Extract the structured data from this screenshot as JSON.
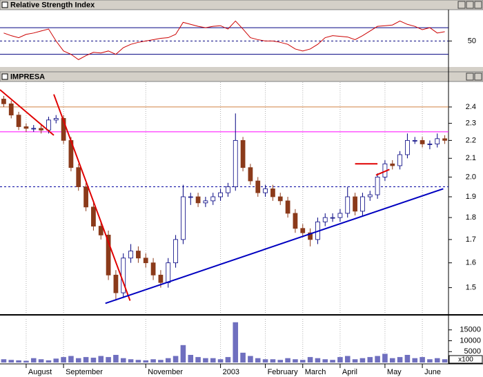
{
  "chart_data": [
    {
      "type": "line",
      "title": "Relative Strength Index",
      "series": [
        {
          "name": "RSI",
          "color": "#cc0000",
          "values": [
            62,
            58,
            55,
            60,
            62,
            65,
            68,
            50,
            35,
            30,
            22,
            28,
            33,
            32,
            35,
            30,
            40,
            45,
            48,
            50,
            52,
            54,
            55,
            60,
            78,
            75,
            72,
            70,
            72,
            73,
            68,
            80,
            68,
            55,
            52,
            50,
            50,
            48,
            45,
            38,
            35,
            38,
            45,
            55,
            58,
            57,
            56,
            52,
            58,
            65,
            72,
            73,
            74,
            80,
            75,
            72,
            67,
            70,
            62,
            64
          ]
        }
      ],
      "ylim": [
        12,
        95
      ],
      "yticks": [
        50
      ],
      "levels": [
        {
          "value": 70,
          "color": "#000080"
        },
        {
          "value": 50,
          "color": "#000080",
          "dash": true
        },
        {
          "value": 30,
          "color": "#000080"
        }
      ]
    },
    {
      "type": "candlestick",
      "title": "IMPRESA",
      "log_scale": true,
      "up_color": "#ffffff",
      "outline_color": "#000080",
      "down_color": "#8b3a1a",
      "open": [
        2.45,
        2.42,
        2.35,
        2.28,
        2.27,
        2.27,
        2.26,
        2.32,
        2.33,
        2.2,
        2.05,
        1.95,
        1.85,
        1.76,
        1.72,
        1.55,
        1.48,
        1.62,
        1.65,
        1.62,
        1.6,
        1.55,
        1.52,
        1.6,
        1.7,
        1.9,
        1.9,
        1.87,
        1.88,
        1.9,
        1.92,
        1.95,
        2.2,
        2.05,
        1.98,
        1.92,
        1.94,
        1.9,
        1.88,
        1.82,
        1.75,
        1.73,
        1.7,
        1.78,
        1.8,
        1.8,
        1.82,
        1.9,
        1.83,
        1.9,
        1.91,
        2.0,
        2.07,
        2.06,
        2.12,
        2.2,
        2.2,
        2.18,
        2.18,
        2.21
      ],
      "high": [
        2.47,
        2.44,
        2.37,
        2.3,
        2.29,
        2.29,
        2.34,
        2.35,
        2.35,
        2.22,
        2.07,
        1.97,
        1.87,
        1.78,
        1.74,
        1.57,
        1.64,
        1.68,
        1.67,
        1.64,
        1.62,
        1.57,
        1.62,
        1.72,
        1.96,
        1.92,
        1.92,
        1.9,
        1.92,
        1.94,
        1.97,
        2.36,
        2.22,
        2.07,
        2.0,
        1.96,
        1.96,
        1.92,
        1.9,
        1.84,
        1.77,
        1.75,
        1.8,
        1.82,
        1.82,
        1.84,
        1.95,
        1.92,
        1.92,
        1.93,
        2.02,
        2.09,
        2.09,
        2.14,
        2.24,
        2.22,
        2.22,
        2.2,
        2.24,
        2.23
      ],
      "low": [
        2.4,
        2.33,
        2.26,
        2.25,
        2.25,
        2.24,
        2.24,
        2.3,
        2.18,
        2.03,
        1.93,
        1.83,
        1.74,
        1.7,
        1.53,
        1.45,
        1.46,
        1.6,
        1.6,
        1.58,
        1.53,
        1.5,
        1.5,
        1.58,
        1.68,
        1.86,
        1.85,
        1.85,
        1.86,
        1.88,
        1.9,
        1.93,
        2.03,
        1.96,
        1.9,
        1.9,
        1.88,
        1.86,
        1.8,
        1.73,
        1.71,
        1.67,
        1.68,
        1.76,
        1.78,
        1.78,
        1.8,
        1.81,
        1.81,
        1.88,
        1.89,
        1.98,
        2.04,
        2.04,
        2.1,
        2.18,
        2.16,
        2.15,
        2.16,
        2.18
      ],
      "close": [
        2.42,
        2.35,
        2.28,
        2.27,
        2.27,
        2.26,
        2.32,
        2.33,
        2.2,
        2.05,
        1.95,
        1.85,
        1.76,
        1.72,
        1.55,
        1.48,
        1.62,
        1.65,
        1.62,
        1.6,
        1.55,
        1.52,
        1.6,
        1.7,
        1.9,
        1.9,
        1.87,
        1.88,
        1.9,
        1.92,
        1.95,
        2.2,
        2.05,
        1.98,
        1.92,
        1.94,
        1.9,
        1.88,
        1.82,
        1.75,
        1.73,
        1.7,
        1.78,
        1.8,
        1.8,
        1.82,
        1.9,
        1.83,
        1.9,
        1.91,
        2.0,
        2.07,
        2.06,
        2.12,
        2.2,
        2.2,
        2.18,
        2.18,
        2.21,
        2.2
      ],
      "ylim": [
        1.4,
        2.56
      ],
      "yticks": [
        2.4,
        2.3,
        2.2,
        2.1,
        {
          "value": 2,
          "label": "2.0"
        },
        1.9,
        1.8,
        1.7,
        1.6,
        1.5
      ],
      "levels": [
        {
          "value": 2.4,
          "color": "#d08040"
        },
        {
          "value": 2.25,
          "color": "#ff00ff"
        },
        {
          "value": 1.95,
          "color": "#0000a0",
          "dash": true
        }
      ],
      "trendlines": [
        {
          "from": [
            -0.5,
            2.51
          ],
          "to": [
            6.7,
            2.23
          ],
          "color": "#e00000"
        },
        {
          "from": [
            6.7,
            2.48
          ],
          "to": [
            16.9,
            1.45
          ],
          "color": "#e00000"
        },
        {
          "from": [
            13.6,
            1.44
          ],
          "to": [
            58.8,
            1.94
          ],
          "color": "#0000c0"
        },
        {
          "from": [
            47,
            2.07
          ],
          "to": [
            50,
            2.07
          ],
          "color": "#e00000"
        },
        {
          "from": [
            49.8,
            2.01
          ],
          "to": [
            51.6,
            2.04
          ],
          "color": "#e00000"
        }
      ]
    },
    {
      "type": "bar",
      "color": "#6f6fbf",
      "unit_label": "x100",
      "categories": [
        null,
        null,
        null,
        "August",
        null,
        null,
        null,
        null,
        "September",
        null,
        null,
        null,
        null,
        null,
        null,
        null,
        null,
        null,
        null,
        "November",
        null,
        null,
        null,
        null,
        null,
        null,
        null,
        null,
        null,
        "2003",
        null,
        null,
        null,
        null,
        null,
        "February",
        null,
        null,
        null,
        null,
        "March",
        null,
        null,
        null,
        null,
        "April",
        null,
        null,
        null,
        null,
        null,
        "May",
        null,
        null,
        null,
        null,
        "June",
        null,
        null,
        null
      ],
      "values": [
        1500,
        1200,
        1000,
        800,
        2000,
        1500,
        1000,
        1800,
        2500,
        3000,
        2000,
        2500,
        2200,
        3000,
        2500,
        3500,
        2000,
        1500,
        1200,
        1000,
        1500,
        1200,
        2000,
        3000,
        8000,
        3500,
        2500,
        2000,
        2000,
        1500,
        2500,
        18500,
        4500,
        3000,
        2000,
        1500,
        1500,
        1200,
        2000,
        1500,
        1200,
        2500,
        2000,
        1500,
        1200,
        2500,
        3000,
        1500,
        2000,
        2500,
        3000,
        4000,
        2000,
        2500,
        3500,
        2000,
        2500,
        1500,
        2000,
        1500
      ],
      "ylim": [
        0,
        20000
      ],
      "yticks": [
        15000,
        10000,
        5000
      ]
    }
  ]
}
